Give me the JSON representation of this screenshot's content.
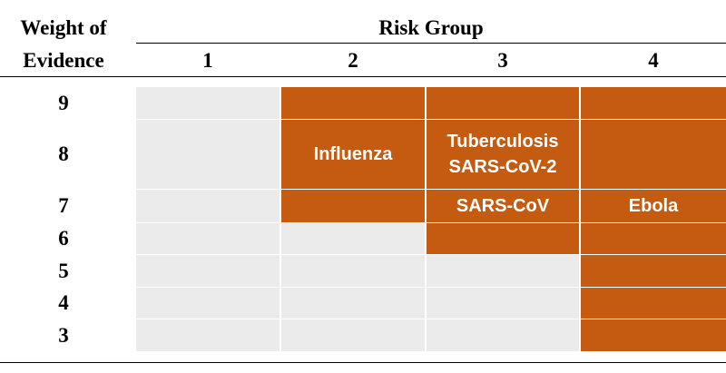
{
  "table": {
    "corner": [
      "Weight of",
      "Evidence"
    ],
    "group_title": "Risk Group",
    "columns": [
      "1",
      "2",
      "3",
      "4"
    ],
    "rows": [
      {
        "label": "9",
        "cells": [
          {
            "fill": "#ebebeb"
          },
          {
            "fill": "#c55a11"
          },
          {
            "fill": "#c55a11"
          },
          {
            "fill": "#c55a11"
          }
        ]
      },
      {
        "label": "8",
        "cells": [
          {
            "fill": "#ebebeb"
          },
          {
            "fill": "#c55a11",
            "text": [
              "Influenza"
            ]
          },
          {
            "fill": "#c55a11",
            "text": [
              "Tuberculosis",
              "SARS-CoV-2"
            ]
          },
          {
            "fill": "#c55a11"
          }
        ]
      },
      {
        "label": "7",
        "cells": [
          {
            "fill": "#ebebeb"
          },
          {
            "fill": "#c55a11"
          },
          {
            "fill": "#c55a11",
            "text": [
              "SARS-CoV"
            ]
          },
          {
            "fill": "#c55a11",
            "text": [
              "Ebola"
            ]
          }
        ]
      },
      {
        "label": "6",
        "cells": [
          {
            "fill": "#ebebeb"
          },
          {
            "fill": "#ebebeb"
          },
          {
            "fill": "#c55a11"
          },
          {
            "fill": "#c55a11"
          }
        ]
      },
      {
        "label": "5",
        "cells": [
          {
            "fill": "#ebebeb"
          },
          {
            "fill": "#ebebeb"
          },
          {
            "fill": "#ebebeb"
          },
          {
            "fill": "#c55a11"
          }
        ]
      },
      {
        "label": "4",
        "cells": [
          {
            "fill": "#ebebeb"
          },
          {
            "fill": "#ebebeb"
          },
          {
            "fill": "#ebebeb"
          },
          {
            "fill": "#c55a11"
          }
        ]
      },
      {
        "label": "3",
        "cells": [
          {
            "fill": "#ebebeb"
          },
          {
            "fill": "#ebebeb"
          },
          {
            "fill": "#ebebeb"
          },
          {
            "fill": "#c55a11"
          }
        ]
      }
    ]
  }
}
